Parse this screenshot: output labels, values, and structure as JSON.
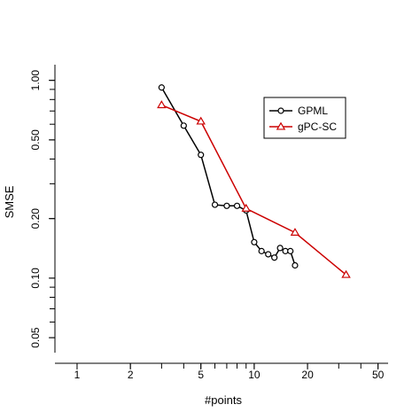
{
  "chart_data": {
    "type": "line",
    "xscale": "log",
    "yscale": "log",
    "xlabel": "#points",
    "ylabel": "SMSE",
    "xlim": [
      0.75,
      57
    ],
    "ylim": [
      0.042,
      1.2
    ],
    "x_ticks": [
      1,
      2,
      5,
      10,
      20,
      50
    ],
    "x_tick_labels": [
      "1",
      "2",
      "5",
      "10",
      "20",
      "50"
    ],
    "y_ticks": [
      0.05,
      0.1,
      0.2,
      0.5,
      1.0
    ],
    "y_tick_labels": [
      "0.05",
      "0.10",
      "0.20",
      "0.50",
      "1.00"
    ],
    "grid": false,
    "legend_position": "top-right",
    "series": [
      {
        "name": "GPML",
        "color": "#000000",
        "marker": "circle",
        "x": [
          3,
          4,
          5,
          6,
          7,
          8,
          9,
          10,
          11,
          12,
          13,
          14,
          15,
          16,
          17
        ],
        "y": [
          0.92,
          0.59,
          0.42,
          0.235,
          0.232,
          0.232,
          0.22,
          0.152,
          0.137,
          0.132,
          0.127,
          0.142,
          0.137,
          0.137,
          0.116
        ]
      },
      {
        "name": "gPC-SC",
        "color": "#cc0000",
        "marker": "triangle",
        "x": [
          3,
          5,
          9,
          17,
          33
        ],
        "y": [
          0.75,
          0.62,
          0.225,
          0.17,
          0.104
        ]
      }
    ]
  }
}
